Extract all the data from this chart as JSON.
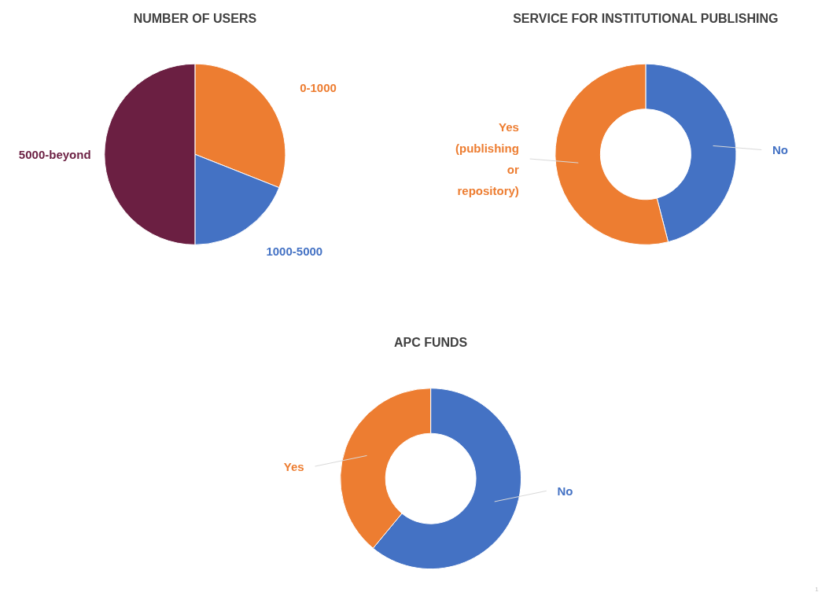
{
  "chart_data": [
    {
      "type": "pie",
      "title": "NUMBER OF USERS",
      "categories": [
        "0-1000",
        "1000-5000",
        "5000-beyond"
      ],
      "values": [
        31,
        19,
        50
      ],
      "colors": [
        "#ed7d31",
        "#4472c4",
        "#6b1f42"
      ]
    },
    {
      "type": "donut",
      "title": "SERVICE FOR INSTITUTIONAL PUBLISHING",
      "categories": [
        "No",
        "Yes\n(publishing\nor\nrepository)"
      ],
      "values": [
        46,
        54
      ],
      "colors": [
        "#4472c4",
        "#ed7d31"
      ]
    },
    {
      "type": "donut",
      "title": "APC FUNDS",
      "categories": [
        "No",
        "Yes"
      ],
      "values": [
        61,
        39
      ],
      "colors": [
        "#4472c4",
        "#ed7d31"
      ],
      "annotations": [
        "1"
      ]
    }
  ]
}
